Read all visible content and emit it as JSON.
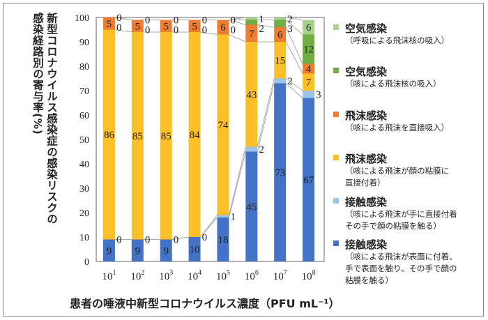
{
  "chart_data": {
    "type": "stacked-bar",
    "ylabel": [
      "新型コロナウイルス感染症の感染リスクの",
      "感染経路別の寄与率(%)"
    ],
    "xlabel": "患者の唾液中新型コロナウイルス濃度（PFU mL⁻¹）",
    "ylim": [
      0,
      100
    ],
    "yticks": [
      0,
      10,
      20,
      30,
      40,
      50,
      60,
      70,
      80,
      90,
      100
    ],
    "categories": [
      {
        "base": "10",
        "exp": "1"
      },
      {
        "base": "10",
        "exp": "2"
      },
      {
        "base": "10",
        "exp": "3"
      },
      {
        "base": "10",
        "exp": "4"
      },
      {
        "base": "10",
        "exp": "5"
      },
      {
        "base": "10",
        "exp": "6"
      },
      {
        "base": "10",
        "exp": "7"
      },
      {
        "base": "10",
        "exp": "8"
      }
    ],
    "series_lines": true,
    "series": [
      {
        "name": "接触感染",
        "desc": "（咳による飛沫が表面に付着、\n手で表面を触り、その手で顔の\n粘膜を触る）",
        "color": "#4472c4",
        "values": [
          9,
          9,
          9,
          10,
          18,
          45,
          73,
          67
        ]
      },
      {
        "name": "接触感染",
        "desc": "（咳による飛沫が手に直接付着\nその手で顔の粘膜を触る）",
        "color": "#9dc3e6",
        "values": [
          0,
          0,
          0,
          0,
          1,
          2,
          2,
          3
        ]
      },
      {
        "name": "飛沫感染",
        "desc": "（咳による飛沫が顔の粘膜に\n直接付着）",
        "color": "#fbbf27",
        "values": [
          86,
          85,
          85,
          84,
          74,
          43,
          15,
          7
        ]
      },
      {
        "name": "飛沫感染",
        "desc": "（咳による飛沫を直接吸入）",
        "color": "#ed7d31",
        "values": [
          5,
          5,
          5,
          5,
          6,
          7,
          6,
          4
        ]
      },
      {
        "name": "空気感染",
        "desc": "（咳による飛沫核の吸入）",
        "color": "#70ad47",
        "values": [
          0,
          0,
          0,
          0,
          0,
          2,
          3,
          12
        ]
      },
      {
        "name": "空気感染",
        "desc": "（呼吸による飛沫核の吸入）",
        "color": "#a9d18e",
        "values": [
          0,
          0,
          0,
          0,
          0,
          1,
          2,
          6
        ]
      }
    ],
    "legend_position": "right"
  }
}
